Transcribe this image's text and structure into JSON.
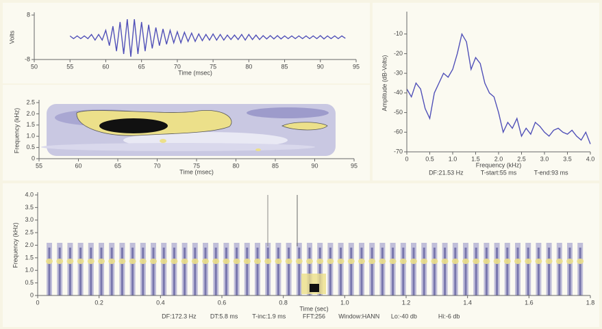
{
  "chart_data": [
    {
      "type": "line",
      "xlabel": "Time (msec)",
      "ylabel": "Volts",
      "color": "#5050b8",
      "xlim": [
        50,
        95
      ],
      "xticks": [
        50,
        55,
        60,
        65,
        70,
        75,
        80,
        85,
        90,
        95
      ],
      "ylim": [
        -8,
        8
      ],
      "yticks": [
        -8,
        8
      ],
      "x": [
        55,
        55.5,
        56,
        56.5,
        57,
        57.5,
        58,
        58.5,
        59,
        59.5,
        60,
        60.5,
        61,
        61.5,
        62,
        62.5,
        63,
        63.5,
        64,
        64.5,
        65,
        65.5,
        66,
        66.5,
        67,
        67.5,
        68,
        68.5,
        69,
        69.5,
        70,
        70.5,
        71,
        71.5,
        72,
        72.5,
        73,
        73.5,
        74,
        74.5,
        75,
        75.5,
        76,
        76.5,
        77,
        77.5,
        78,
        78.5,
        79,
        79.5,
        80,
        80.5,
        81,
        81.5,
        82,
        82.5,
        83,
        83.5,
        84,
        84.5,
        85,
        85.5,
        86,
        86.5,
        87,
        87.5,
        88,
        88.5,
        89,
        89.5,
        90,
        90.5,
        91,
        91.5,
        92,
        92.5,
        93,
        93.5
      ],
      "values": [
        0.5,
        -0.5,
        0.5,
        -0.5,
        0.5,
        -0.5,
        1,
        -1,
        1,
        -1,
        2.5,
        -3,
        4,
        -5,
        5.5,
        -6,
        6.5,
        -7,
        6.5,
        -6,
        5.5,
        -5,
        4.5,
        -4,
        3.5,
        -3,
        3,
        -2.5,
        2.5,
        -2,
        2,
        -2,
        1.8,
        -1.5,
        1.5,
        -1.5,
        1.2,
        -1.2,
        1,
        -1,
        1.2,
        -1,
        1,
        -1,
        0.8,
        -0.8,
        0.8,
        -0.8,
        1,
        -1,
        1,
        -0.8,
        0.8,
        -0.8,
        0.6,
        -0.6,
        0.6,
        -0.6,
        0.6,
        -0.6,
        0.5,
        -0.5,
        0.5,
        -0.5,
        0.5,
        -0.5,
        0.5,
        -0.5,
        0.5,
        -0.5,
        0.6,
        -0.6,
        0.5,
        -0.5,
        0.5,
        -0.5,
        0.5,
        -0.4
      ]
    },
    {
      "type": "spectrogram",
      "xlabel": "Time (msec)",
      "ylabel": "Frequency (kHz)",
      "xlim": [
        55,
        95
      ],
      "xticks": [
        55,
        60,
        65,
        70,
        75,
        80,
        85,
        90,
        95
      ],
      "ylim": [
        0,
        2.5
      ],
      "yticks": [
        0,
        0.5,
        {
          "value": 1,
          "label": "1.0"
        },
        1.5,
        {
          "value": 2,
          "label": "2.0"
        },
        2.5
      ]
    },
    {
      "type": "line",
      "xlabel": "Frequency (kHz)",
      "ylabel": "Amplitude (dB-Volts)",
      "color": "#5050b8",
      "xlim": [
        0,
        4
      ],
      "xticks": [
        0,
        0.5,
        {
          "value": 1,
          "label": "1.0"
        },
        1.5,
        {
          "value": 2,
          "label": "2.0"
        },
        2.5,
        {
          "value": 3,
          "label": "3.0"
        },
        3.5,
        {
          "value": 4,
          "label": "4.0"
        }
      ],
      "ylim": [
        -70,
        0
      ],
      "yticks": [
        -70,
        -60,
        -50,
        -40,
        -30,
        -20,
        -10
      ],
      "x": [
        0,
        0.1,
        0.2,
        0.3,
        0.4,
        0.5,
        0.6,
        0.7,
        0.8,
        0.9,
        1,
        1.1,
        1.2,
        1.3,
        1.4,
        1.5,
        1.6,
        1.7,
        1.8,
        1.9,
        2,
        2.1,
        2.2,
        2.3,
        2.4,
        2.5,
        2.6,
        2.7,
        2.8,
        2.9,
        3,
        3.1,
        3.2,
        3.3,
        3.4,
        3.5,
        3.6,
        3.7,
        3.8,
        3.9,
        4
      ],
      "values": [
        -38,
        -42,
        -35,
        -38,
        -48,
        -53,
        -40,
        -35,
        -30,
        -32,
        -28,
        -20,
        -10,
        -14,
        -28,
        -22,
        -25,
        -35,
        -40,
        -42,
        -50,
        -60,
        -55,
        -58,
        -53,
        -62,
        -58,
        -61,
        -55,
        -57,
        -60,
        -62,
        -59,
        -58,
        -60,
        -61,
        -59,
        -62,
        -64,
        -60,
        -66
      ],
      "notes": [
        "DF:21.53 Hz",
        "T-start:55 ms",
        "T-end:93 ms"
      ]
    },
    {
      "type": "spectrogram",
      "xlabel": "Time (sec)",
      "ylabel": "Frequency (kHz)",
      "xlim": [
        0,
        1.8
      ],
      "xticks": [
        0,
        0.2,
        0.4,
        0.6,
        0.8,
        {
          "value": 1,
          "label": "1.0"
        },
        1.2,
        1.4,
        1.6,
        1.8
      ],
      "ylim": [
        0,
        4
      ],
      "yticks": [
        0,
        0.5,
        {
          "value": 1,
          "label": "1.0"
        },
        1.5,
        {
          "value": 2,
          "label": "2.0"
        },
        2.5,
        {
          "value": 3,
          "label": "3.0"
        },
        3.5,
        {
          "value": 4,
          "label": "4.0"
        }
      ],
      "notes": [
        "DF:172.3 Hz",
        "DT:5.8 ms",
        "T-inc:1.9 ms",
        "FFT:256",
        "Window:HANN",
        "Lo:-40 db",
        "Hi:-6 db"
      ]
    }
  ]
}
